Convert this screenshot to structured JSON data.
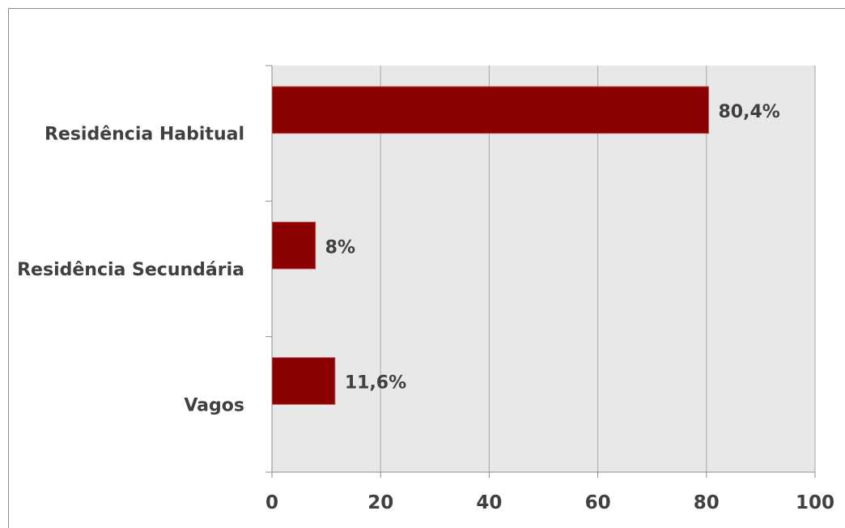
{
  "chart_data": {
    "type": "bar",
    "orientation": "horizontal",
    "categories": [
      "Residência Habitual",
      "Residência Secundária",
      "Vagos"
    ],
    "values": [
      80.4,
      8,
      11.6
    ],
    "data_labels": [
      "80,4%",
      "8%",
      "11,6%"
    ],
    "xlim": [
      0,
      100
    ],
    "xticks": [
      0,
      20,
      40,
      60,
      80,
      100
    ],
    "xtick_labels": [
      "0",
      "20",
      "40",
      "60",
      "80",
      "100"
    ],
    "grid": true,
    "legend": "none",
    "colors": {
      "bar_fill": "#8b0000",
      "bar_stroke": "#c0504d",
      "plot_background": "#e8e8e8",
      "gridline": "#a6a6a6",
      "text": "#404040"
    }
  }
}
